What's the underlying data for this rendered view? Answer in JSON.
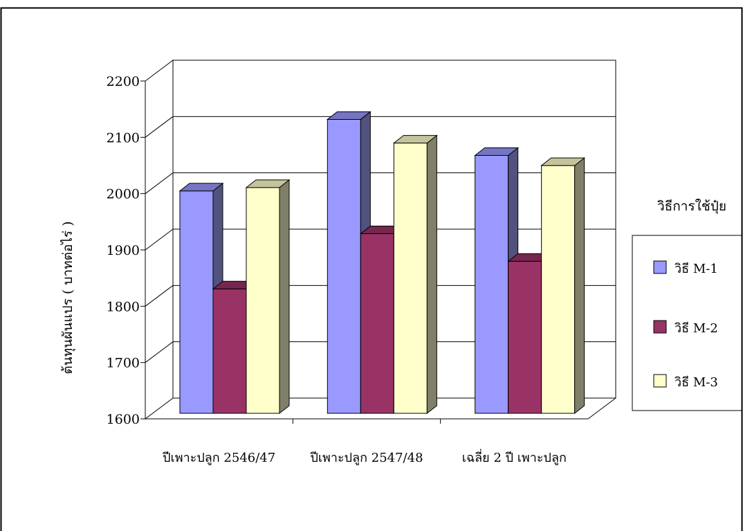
{
  "chart_data": {
    "type": "bar",
    "title": "",
    "xlabel": "",
    "ylabel": "ต้นทุนผันแปร ( บาทต่อไร่ )",
    "categories": [
      "ปีเพาะปลูก 2546/47",
      "ปีเพาะปลูก 2547/48",
      "เฉลี่ย 2 ปี เพาะปลูก"
    ],
    "series": [
      {
        "name": "วิธี M-1",
        "values": [
          1995,
          2122,
          2058
        ]
      },
      {
        "name": "วิธี M-2",
        "values": [
          1821,
          1919,
          1870
        ]
      },
      {
        "name": "วิธี M-3",
        "values": [
          2001,
          2080,
          2040
        ]
      }
    ],
    "ylim": [
      1600,
      2200
    ],
    "yticks": [
      "1600",
      "1700",
      "1800",
      "1900",
      "2000",
      "2100",
      "2200"
    ],
    "grid": true,
    "legend_title": "วิธีการใช้ปุ๋ย",
    "legend_position": "right",
    "colors": {
      "series_front": [
        "#9999ff",
        "#993366",
        "#ffffcc"
      ],
      "series_side": [
        "#52527f",
        "#4d1933",
        "#80806a"
      ],
      "series_top": [
        "#7575c4",
        "#76274e",
        "#c4c49c"
      ],
      "gridline": "#000000",
      "frame": "#000000"
    }
  }
}
